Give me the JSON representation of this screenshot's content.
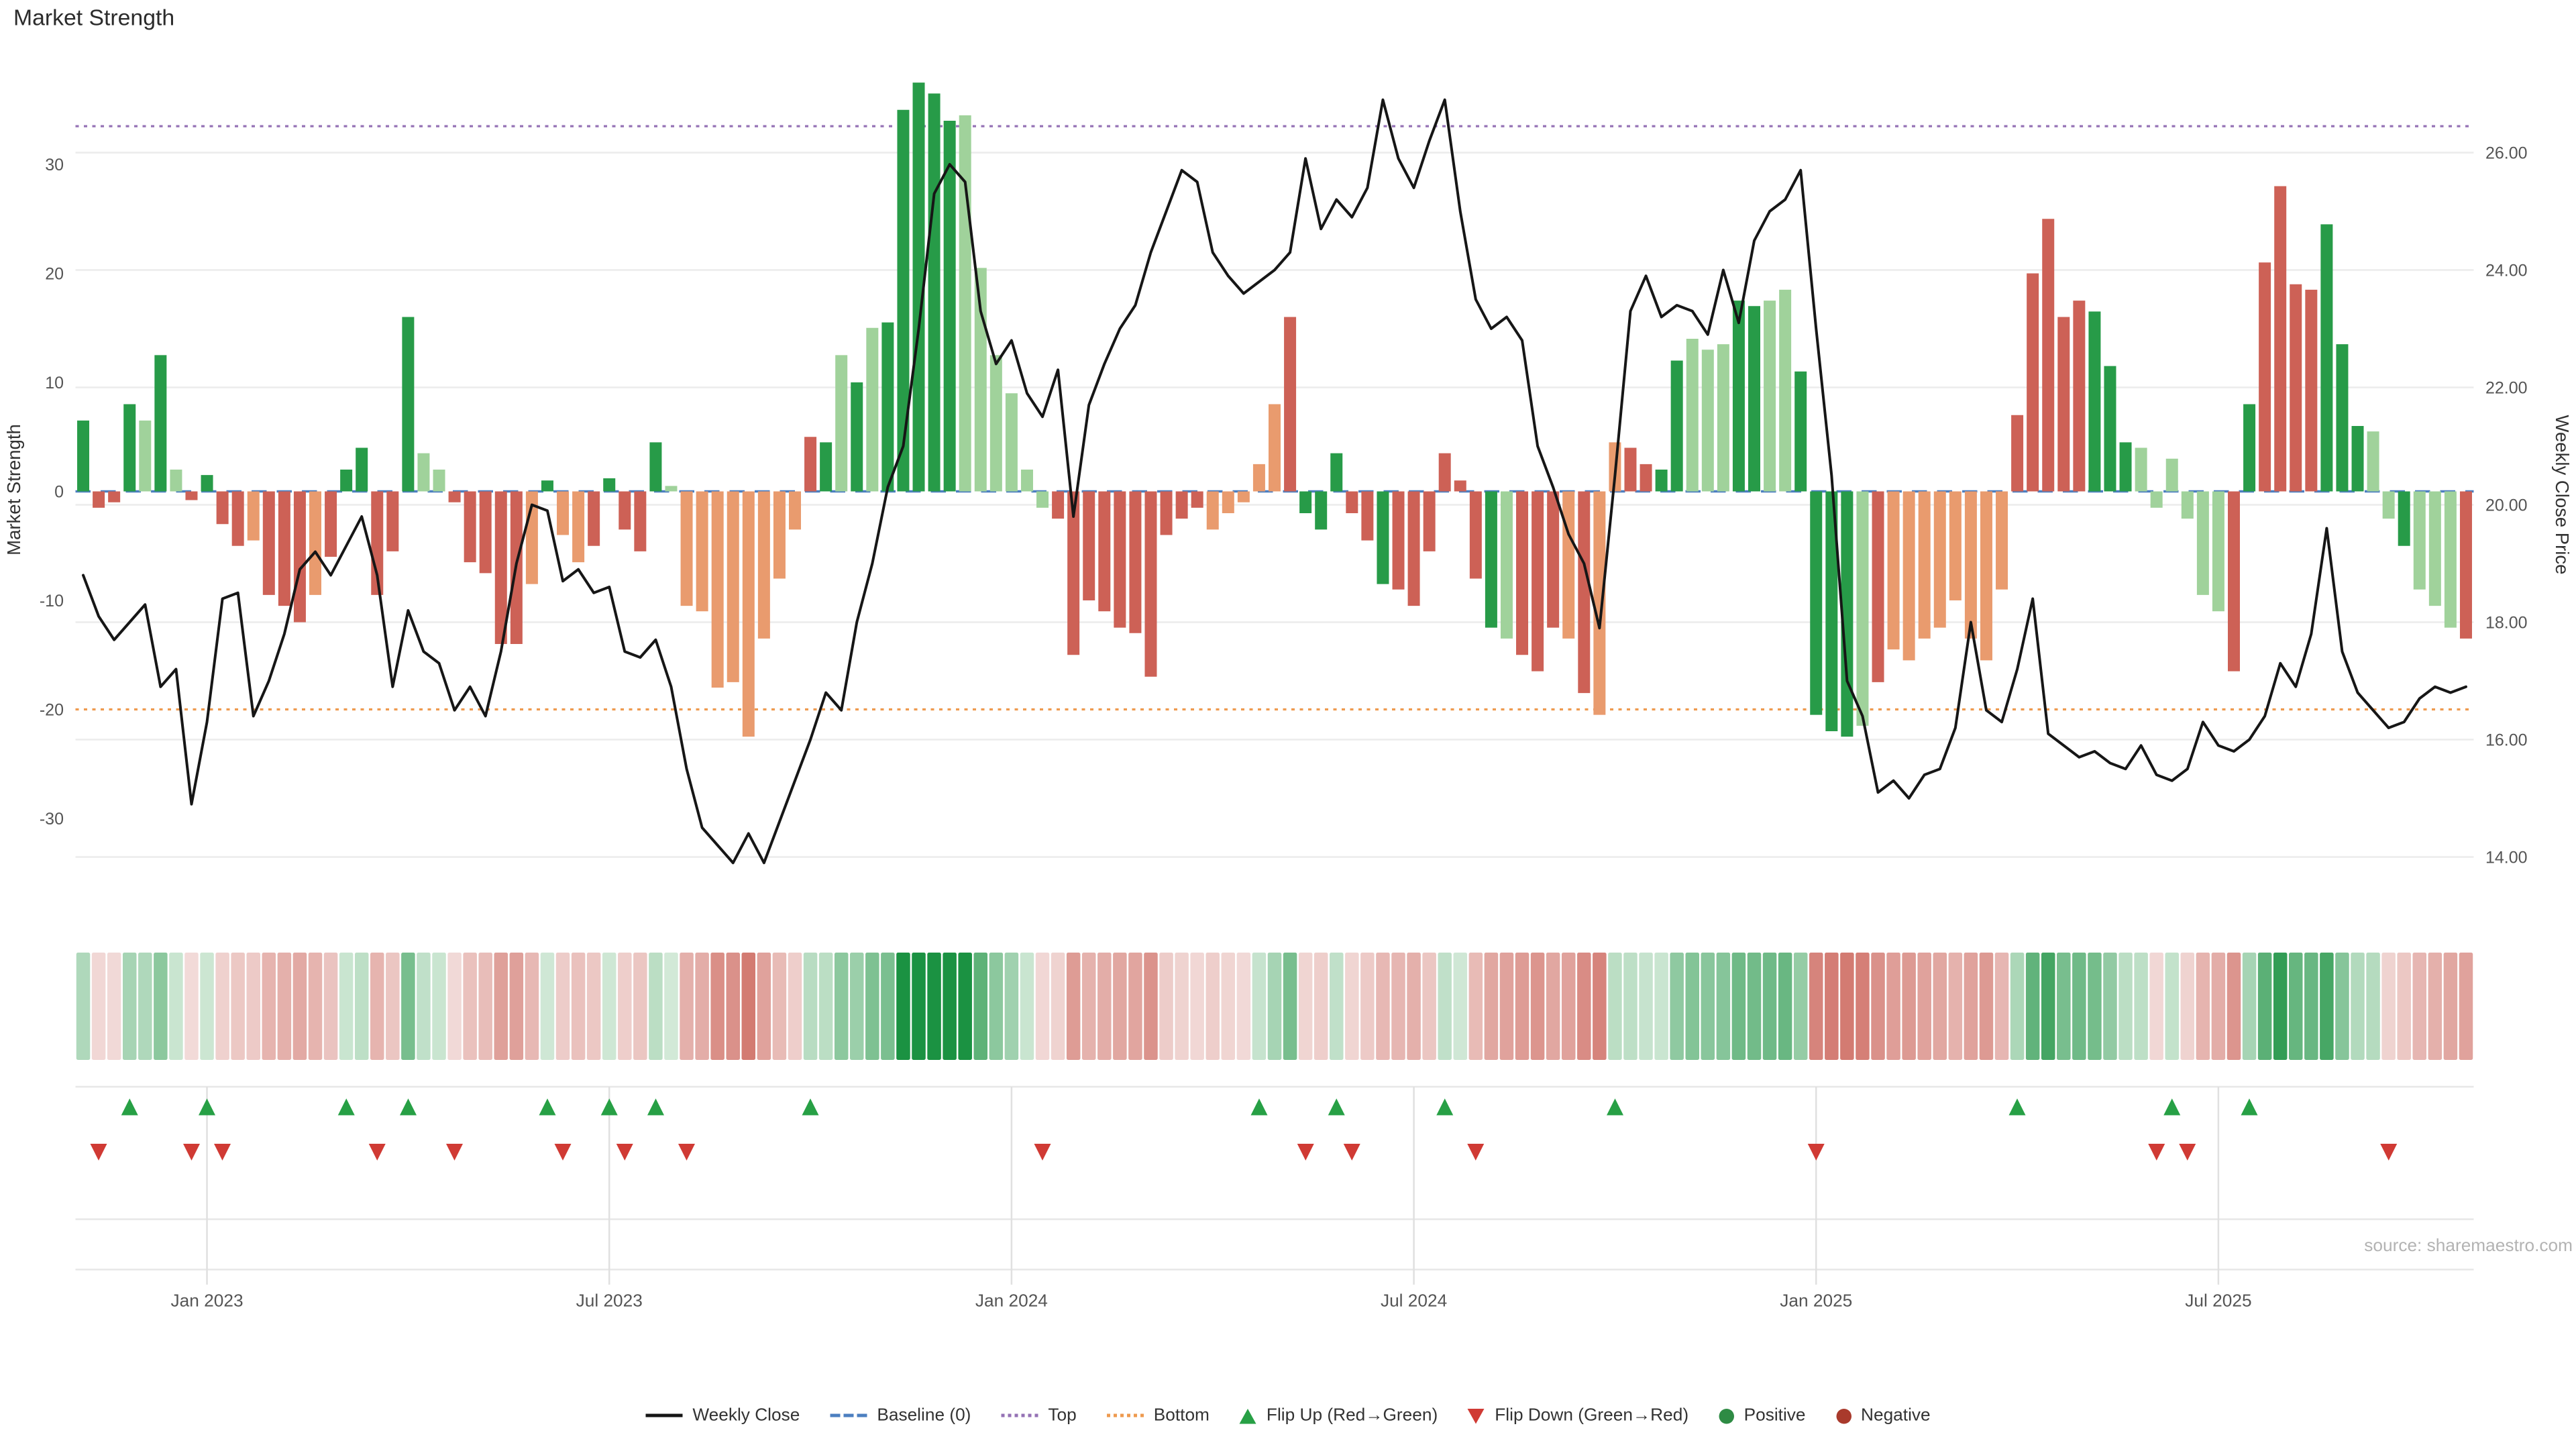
{
  "title": "Market Strength",
  "source": "source: sharemaestro.com",
  "left_axis": {
    "label": "Market Strength",
    "ticks": [
      "30",
      "20",
      "10",
      "0",
      "-10",
      "-20",
      "-30"
    ],
    "tick_values": [
      30,
      20,
      10,
      0,
      -10,
      -20,
      -30
    ]
  },
  "right_axis": {
    "label": "Weekly Close Price",
    "ticks": [
      "26.00",
      "24.00",
      "22.00",
      "20.00",
      "18.00",
      "16.00",
      "14.00"
    ],
    "tick_values": [
      26,
      24,
      22,
      20,
      18,
      16,
      14
    ]
  },
  "x_axis": {
    "ticks": [
      {
        "label": "Jan 2023",
        "index": 8
      },
      {
        "label": "Jul 2023",
        "index": 34
      },
      {
        "label": "Jan 2024",
        "index": 60
      },
      {
        "label": "Jul 2024",
        "index": 86
      },
      {
        "label": "Jan 2025",
        "index": 112
      },
      {
        "label": "Jul 2025",
        "index": 138
      }
    ]
  },
  "legend": {
    "items": [
      {
        "label": "Weekly Close",
        "swatch": "line",
        "color": "#161616"
      },
      {
        "label": "Baseline (0)",
        "swatch": "dashed",
        "color": "#4c7fc0"
      },
      {
        "label": "Top",
        "swatch": "dotted",
        "color": "#9572b5"
      },
      {
        "label": "Bottom",
        "swatch": "dotted",
        "color": "#ee9a4f"
      },
      {
        "label": "Flip Up (Red→Green)",
        "swatch": "triangle-up",
        "color": "#27a045"
      },
      {
        "label": "Flip Down (Green→Red)",
        "swatch": "triangle-down",
        "color": "#d03a34"
      },
      {
        "label": "Positive",
        "swatch": "dot",
        "color": "#2e8b44"
      },
      {
        "label": "Negative",
        "swatch": "dot",
        "color": "#a93a2c"
      }
    ]
  },
  "chart_data": {
    "type": "combo-bar-line",
    "title": "Market Strength",
    "x_unit": "week",
    "n_points": 155,
    "ylim_left": [
      -38,
      40
    ],
    "ylim_right": [
      13.2,
      27.6
    ],
    "reference_lines": {
      "baseline": 0,
      "top": 33.5,
      "bottom": -20
    },
    "flip_up_indices": [
      3,
      8,
      17,
      21,
      30,
      34,
      37,
      47,
      76,
      81,
      88,
      99,
      125,
      135,
      140
    ],
    "flip_down_indices": [
      1,
      7,
      9,
      19,
      24,
      31,
      35,
      39,
      62,
      79,
      82,
      90,
      112,
      134,
      136,
      149
    ],
    "shade_colors": {
      "g": "#279b48",
      "G": "#a0d29b",
      "r": "#cd6156",
      "o": "#e99b6e"
    },
    "series": [
      {
        "name": "Market Strength",
        "type": "bar",
        "axis": "left",
        "values": [
          6.5,
          -1.5,
          -1,
          8,
          6.5,
          12.5,
          2,
          -0.8,
          1.5,
          -3,
          -5,
          -4.5,
          -9.5,
          -10.5,
          -12,
          -9.5,
          -6,
          2,
          4,
          -9.5,
          -5.5,
          16,
          3.5,
          2,
          -1,
          -6.5,
          -7.5,
          -14,
          -14,
          -8.5,
          1,
          -4,
          -6.5,
          -5,
          1.2,
          -3.5,
          -5.5,
          4.5,
          0.5,
          -10.5,
          -11,
          -18,
          -17.5,
          -22.5,
          -13.5,
          -8,
          -3.5,
          5,
          4.5,
          12.5,
          10,
          15,
          15.5,
          35,
          37.5,
          36.5,
          34,
          34.5,
          20.5,
          12.5,
          9,
          2,
          -1.5,
          -2.5,
          -15,
          -10,
          -11,
          -12.5,
          -13,
          -17,
          -4,
          -2.5,
          -1.5,
          -3.5,
          -2,
          -1,
          2.5,
          8,
          16,
          -2,
          -3.5,
          3.5,
          -2,
          -4.5,
          -8.5,
          -9,
          -10.5,
          -5.5,
          3.5,
          1,
          -8,
          -12.5,
          -13.5,
          -15,
          -16.5,
          -12.5,
          -13.5,
          -18.5,
          -20.5,
          4.5,
          4,
          2.5,
          2,
          12,
          14,
          13,
          13.5,
          17.5,
          17,
          17.5,
          18.5,
          11,
          -20.5,
          -22,
          -22.5,
          -21.5,
          -17.5,
          -14.5,
          -15.5,
          -13.5,
          -12.5,
          -10,
          -13.5,
          -15.5,
          -9,
          7,
          20,
          25,
          16,
          17.5,
          16.5,
          11.5,
          4.5,
          4,
          -1.5,
          3,
          -2.5,
          -9.5,
          -11,
          -16.5,
          8,
          21,
          28,
          19,
          18.5,
          24.5,
          13.5,
          6,
          5.5,
          -2.5,
          -5,
          -9,
          -10.5,
          -12.5,
          -13.5
        ],
        "shades": "grrgGgGrgrrorrrorggrrgGGrrrrrogoorgrrgGoooooooorgGgGgggggGGGGGGrrrrrrrrrrooooorgggrrgrrrrrrgGrrroroorrggGGGggGGggggGroooooooorrrrrgggGGGGGGrgrrrrgggGGgGGGrrrrrr"
      },
      {
        "name": "Weekly Close",
        "type": "line",
        "axis": "right",
        "values": [
          18.8,
          18.1,
          17.7,
          18.0,
          18.3,
          16.9,
          17.2,
          14.9,
          16.3,
          18.4,
          18.5,
          16.4,
          17.0,
          17.8,
          18.9,
          19.2,
          18.8,
          19.3,
          19.8,
          18.8,
          16.9,
          18.2,
          17.5,
          17.3,
          16.5,
          16.9,
          16.4,
          17.5,
          19.0,
          20.0,
          19.9,
          18.7,
          18.9,
          18.5,
          18.6,
          17.5,
          17.4,
          17.7,
          16.9,
          15.5,
          14.5,
          14.2,
          13.9,
          14.4,
          13.9,
          14.6,
          15.3,
          16.0,
          16.8,
          16.5,
          18.0,
          19.0,
          20.3,
          21.0,
          23.0,
          25.3,
          25.8,
          25.5,
          23.3,
          22.4,
          22.8,
          21.9,
          21.5,
          22.3,
          19.8,
          21.7,
          22.4,
          23.0,
          23.4,
          24.3,
          25.0,
          25.7,
          25.5,
          24.3,
          23.9,
          23.6,
          23.8,
          24.0,
          24.3,
          25.9,
          24.7,
          25.2,
          24.9,
          25.4,
          26.9,
          25.9,
          25.4,
          26.2,
          26.9,
          25.0,
          23.5,
          23.0,
          23.2,
          22.8,
          21.0,
          20.3,
          19.5,
          19.0,
          17.9,
          20.5,
          23.3,
          23.9,
          23.2,
          23.4,
          23.3,
          22.9,
          24.0,
          23.1,
          24.5,
          25.0,
          25.2,
          25.7,
          23.0,
          20.5,
          17.0,
          16.4,
          15.1,
          15.3,
          15.0,
          15.4,
          15.5,
          16.2,
          18.0,
          16.5,
          16.3,
          17.2,
          18.4,
          16.1,
          15.9,
          15.7,
          15.8,
          15.6,
          15.5,
          15.9,
          15.4,
          15.3,
          15.5,
          16.3,
          15.9,
          15.8,
          16.0,
          16.4,
          17.3,
          16.9,
          17.8,
          19.6,
          17.5,
          16.8,
          16.5,
          16.2,
          16.3,
          16.7,
          16.9,
          16.8,
          16.9
        ]
      }
    ]
  }
}
